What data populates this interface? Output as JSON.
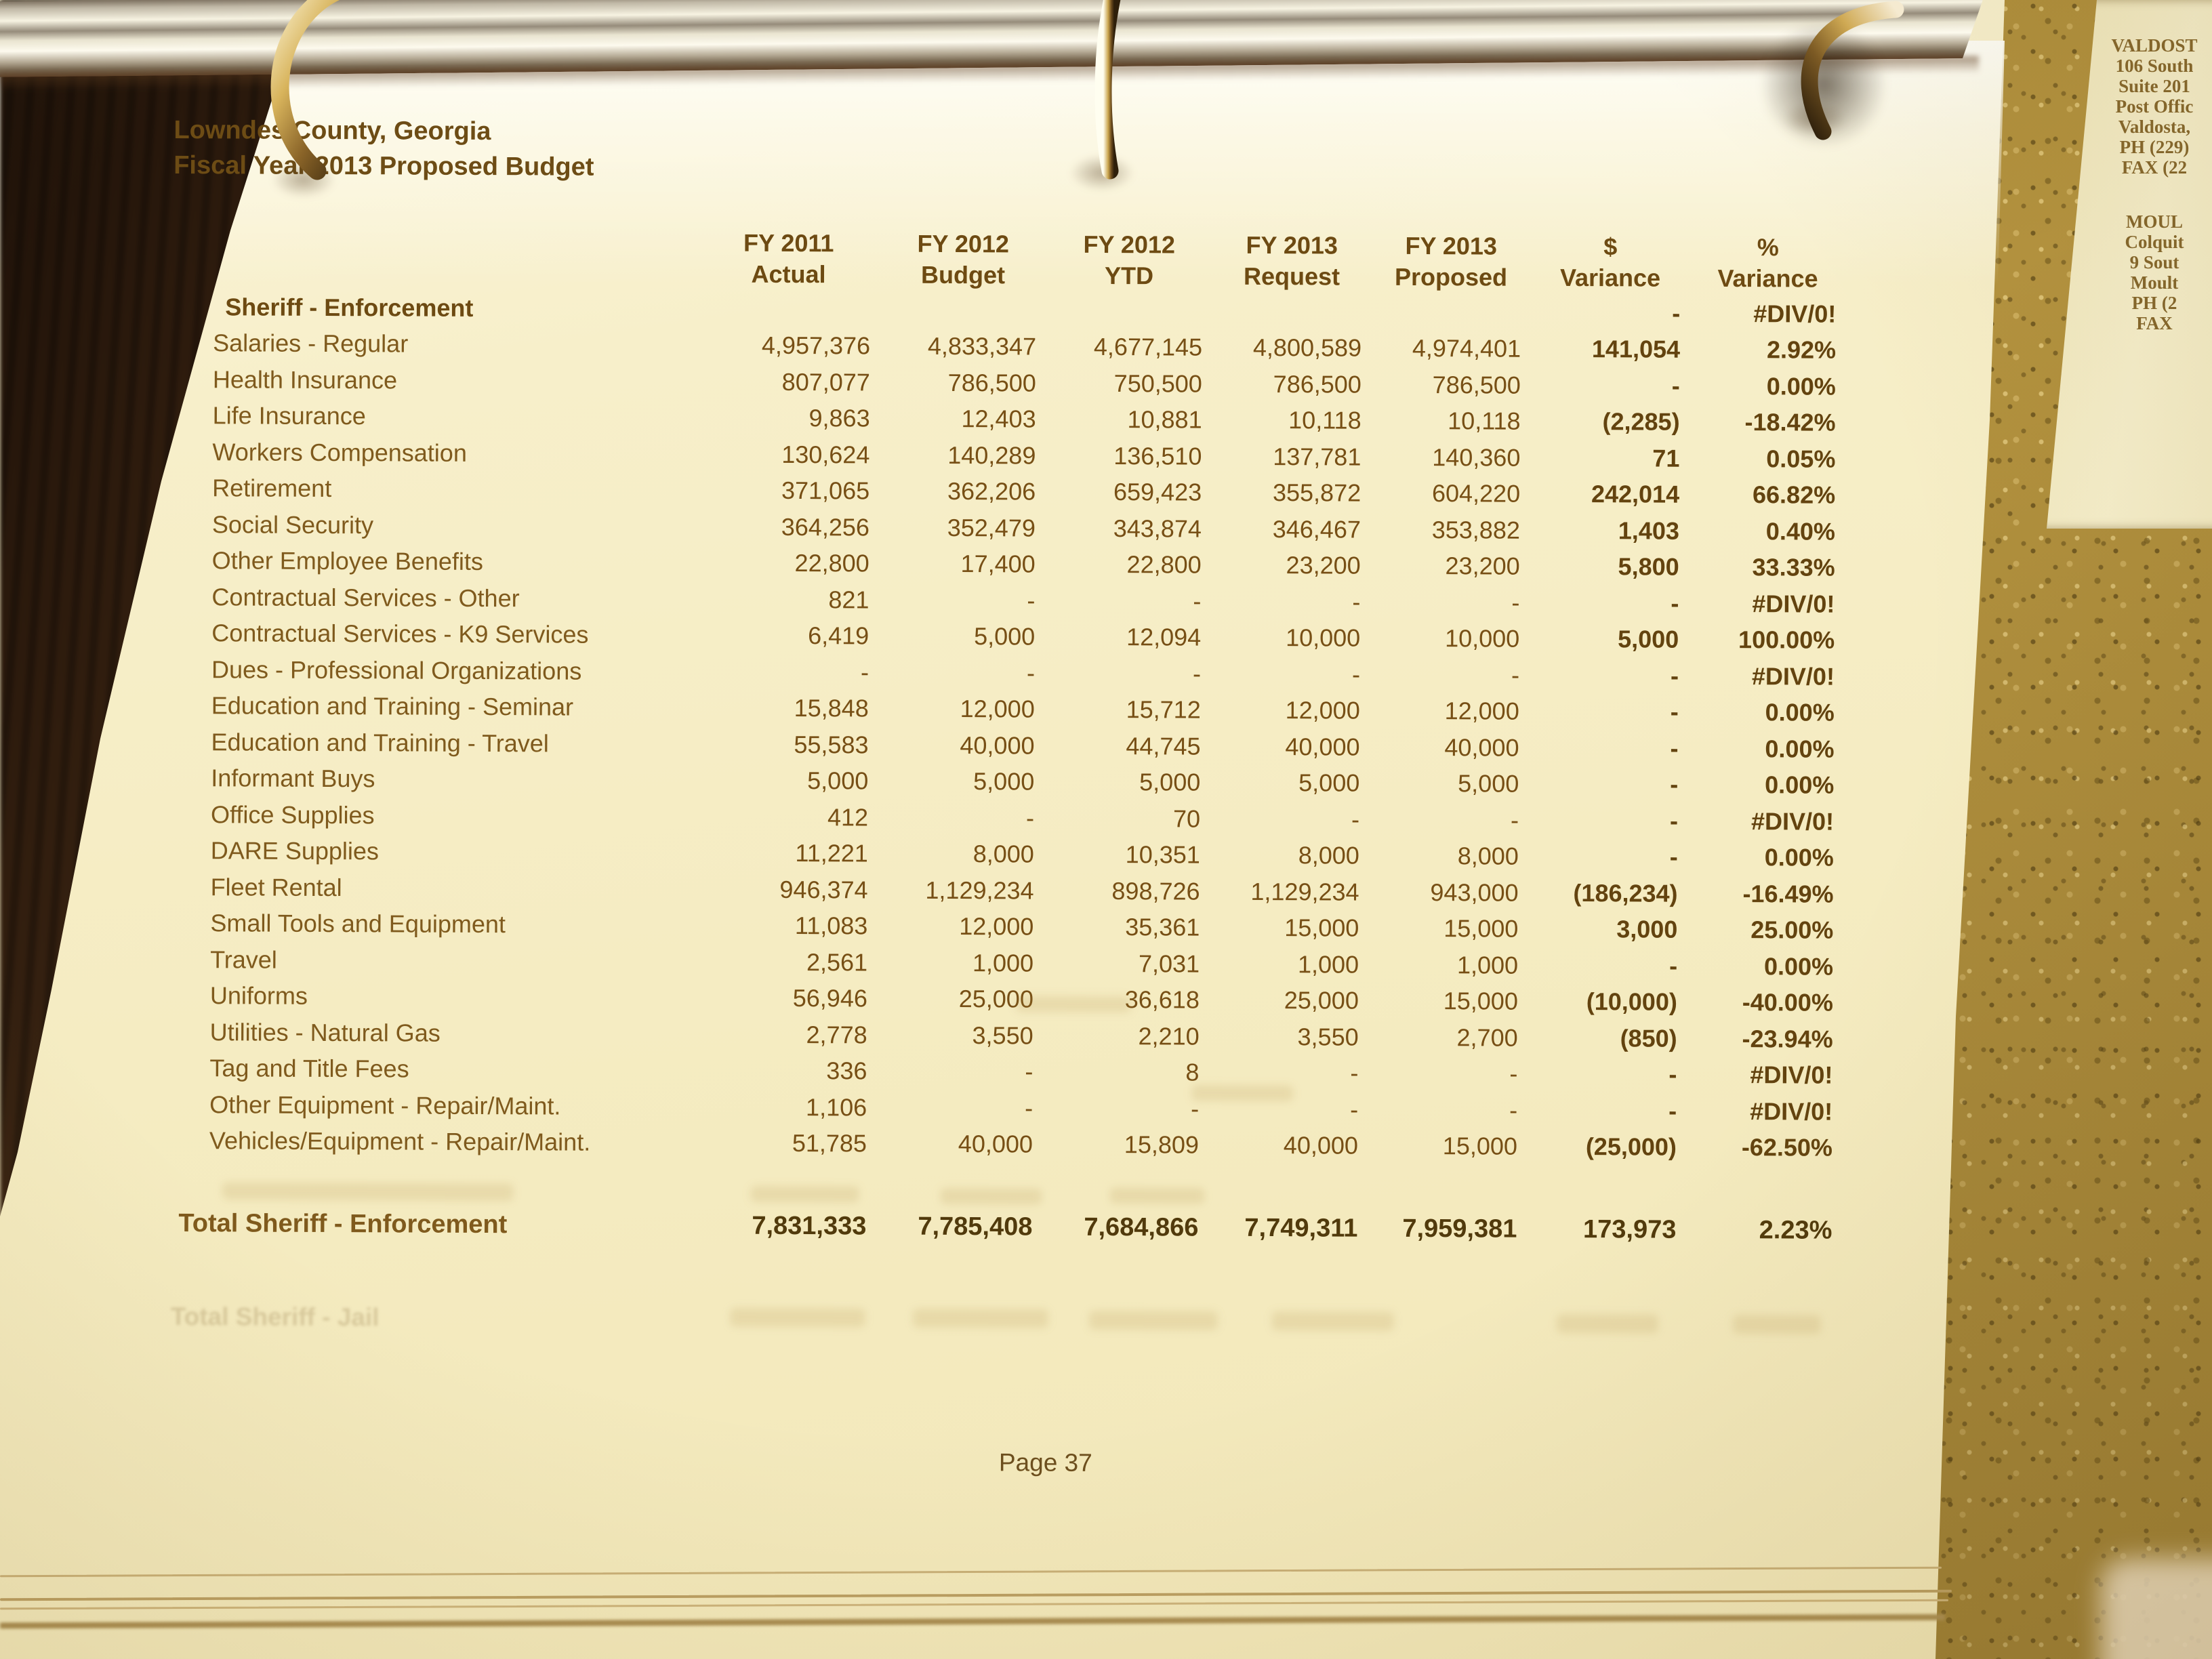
{
  "document": {
    "org": "Lowndes County, Georgia",
    "subtitle": "Fiscal Year 2013 Proposed Budget",
    "page_label": "Page 37",
    "columns": [
      {
        "line1": "FY 2011",
        "line2": "Actual"
      },
      {
        "line1": "FY 2012",
        "line2": "Budget"
      },
      {
        "line1": "FY 2012",
        "line2": "YTD"
      },
      {
        "line1": "FY 2013",
        "line2": "Request"
      },
      {
        "line1": "FY 2013",
        "line2": "Proposed"
      },
      {
        "line1": "$",
        "line2": "Variance"
      },
      {
        "line1": "%",
        "line2": "Variance"
      }
    ],
    "section_row": {
      "label": "Sheriff - Enforcement",
      "values": [
        "",
        "",
        "",
        "",
        "",
        "-",
        "#DIV/0!"
      ]
    },
    "rows": [
      {
        "label": "Salaries - Regular",
        "values": [
          "4,957,376",
          "4,833,347",
          "4,677,145",
          "4,800,589",
          "4,974,401",
          "141,054",
          "2.92%"
        ]
      },
      {
        "label": "Health Insurance",
        "values": [
          "807,077",
          "786,500",
          "750,500",
          "786,500",
          "786,500",
          "-",
          "0.00%"
        ]
      },
      {
        "label": "Life Insurance",
        "values": [
          "9,863",
          "12,403",
          "10,881",
          "10,118",
          "10,118",
          "(2,285)",
          "-18.42%"
        ]
      },
      {
        "label": "Workers Compensation",
        "values": [
          "130,624",
          "140,289",
          "136,510",
          "137,781",
          "140,360",
          "71",
          "0.05%"
        ]
      },
      {
        "label": "Retirement",
        "values": [
          "371,065",
          "362,206",
          "659,423",
          "355,872",
          "604,220",
          "242,014",
          "66.82%"
        ]
      },
      {
        "label": "Social Security",
        "values": [
          "364,256",
          "352,479",
          "343,874",
          "346,467",
          "353,882",
          "1,403",
          "0.40%"
        ]
      },
      {
        "label": "Other Employee Benefits",
        "values": [
          "22,800",
          "17,400",
          "22,800",
          "23,200",
          "23,200",
          "5,800",
          "33.33%"
        ]
      },
      {
        "label": "Contractual Services - Other",
        "values": [
          "821",
          "-",
          "-",
          "-",
          "-",
          "-",
          "#DIV/0!"
        ]
      },
      {
        "label": "Contractual Services - K9 Services",
        "values": [
          "6,419",
          "5,000",
          "12,094",
          "10,000",
          "10,000",
          "5,000",
          "100.00%"
        ]
      },
      {
        "label": "Dues - Professional Organizations",
        "values": [
          "-",
          "-",
          "-",
          "-",
          "-",
          "-",
          "#DIV/0!"
        ]
      },
      {
        "label": "Education and Training - Seminar",
        "values": [
          "15,848",
          "12,000",
          "15,712",
          "12,000",
          "12,000",
          "-",
          "0.00%"
        ]
      },
      {
        "label": "Education and Training - Travel",
        "values": [
          "55,583",
          "40,000",
          "44,745",
          "40,000",
          "40,000",
          "-",
          "0.00%"
        ]
      },
      {
        "label": "Informant Buys",
        "values": [
          "5,000",
          "5,000",
          "5,000",
          "5,000",
          "5,000",
          "-",
          "0.00%"
        ]
      },
      {
        "label": "Office Supplies",
        "values": [
          "412",
          "-",
          "70",
          "-",
          "-",
          "-",
          "#DIV/0!"
        ]
      },
      {
        "label": "DARE Supplies",
        "values": [
          "11,221",
          "8,000",
          "10,351",
          "8,000",
          "8,000",
          "-",
          "0.00%"
        ]
      },
      {
        "label": "Fleet Rental",
        "values": [
          "946,374",
          "1,129,234",
          "898,726",
          "1,129,234",
          "943,000",
          "(186,234)",
          "-16.49%"
        ]
      },
      {
        "label": "Small Tools and Equipment",
        "values": [
          "11,083",
          "12,000",
          "35,361",
          "15,000",
          "15,000",
          "3,000",
          "25.00%"
        ]
      },
      {
        "label": "Travel",
        "values": [
          "2,561",
          "1,000",
          "7,031",
          "1,000",
          "1,000",
          "-",
          "0.00%"
        ]
      },
      {
        "label": "Uniforms",
        "values": [
          "56,946",
          "25,000",
          "36,618",
          "25,000",
          "15,000",
          "(10,000)",
          "-40.00%"
        ]
      },
      {
        "label": "Utilities - Natural Gas",
        "values": [
          "2,778",
          "3,550",
          "2,210",
          "3,550",
          "2,700",
          "(850)",
          "-23.94%"
        ]
      },
      {
        "label": "Tag and Title Fees",
        "values": [
          "336",
          "-",
          "8",
          "-",
          "-",
          "-",
          "#DIV/0!"
        ]
      },
      {
        "label": "Other Equipment - Repair/Maint.",
        "values": [
          "1,106",
          "-",
          "-",
          "-",
          "-",
          "-",
          "#DIV/0!"
        ]
      },
      {
        "label": "Vehicles/Equipment - Repair/Maint.",
        "values": [
          "51,785",
          "40,000",
          "15,809",
          "40,000",
          "15,000",
          "(25,000)",
          "-62.50%"
        ]
      }
    ],
    "total_row": {
      "label": "Total Sheriff - Enforcement",
      "values": [
        "7,831,333",
        "7,785,408",
        "7,684,866",
        "7,749,311",
        "7,959,381",
        "173,973",
        "2.23%"
      ]
    },
    "ghost_row_label": "Total Sheriff - Jail"
  },
  "side_page": {
    "blocks": [
      {
        "lines": [
          "VALDOST",
          "106 South",
          "Suite 201",
          "Post Offic",
          "Valdosta,",
          "PH (229)",
          "FAX (22"
        ]
      },
      {
        "lines": [
          "MOUL",
          "Colquit",
          "9 Sout",
          "Moult",
          "PH (2",
          "FAX"
        ]
      }
    ]
  },
  "colors": {
    "paper": "#f6eec6",
    "ink": "#7a5315",
    "ink_bold": "#63430f",
    "countertop": "#b4933f",
    "binder_dark": "#301d0e",
    "ring_gold": "#caa54e"
  }
}
